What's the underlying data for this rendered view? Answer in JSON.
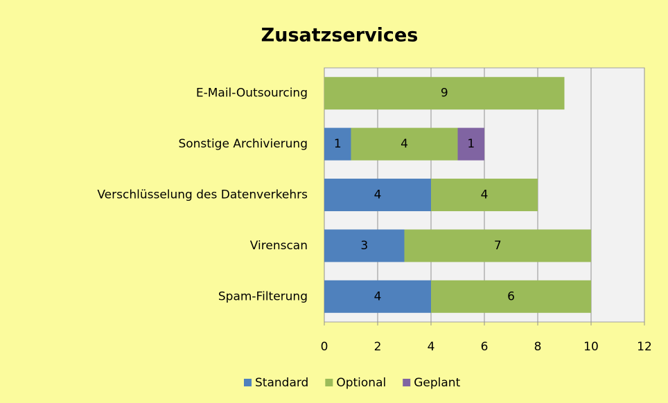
{
  "chart_data": {
    "type": "stacked-bar-horizontal",
    "title": "Zusatzservices",
    "categories": [
      "E-Mail-Outsourcing",
      "Sonstige Archivierung",
      "Verschlüsselung des Datenverkehrs",
      "Virenscan",
      "Spam-Filterung"
    ],
    "series": [
      {
        "name": "Standard",
        "color": "#4f81bd",
        "values": [
          null,
          1,
          4,
          3,
          4
        ]
      },
      {
        "name": "Optional",
        "color": "#9bbb59",
        "values": [
          9,
          4,
          4,
          7,
          6
        ]
      },
      {
        "name": "Geplant",
        "color": "#8064a2",
        "values": [
          null,
          1,
          null,
          null,
          null
        ]
      }
    ],
    "xlim": [
      0,
      12
    ],
    "xticks": [
      0,
      2,
      4,
      6,
      8,
      10,
      12
    ],
    "grid": true,
    "legend": "bottom"
  }
}
